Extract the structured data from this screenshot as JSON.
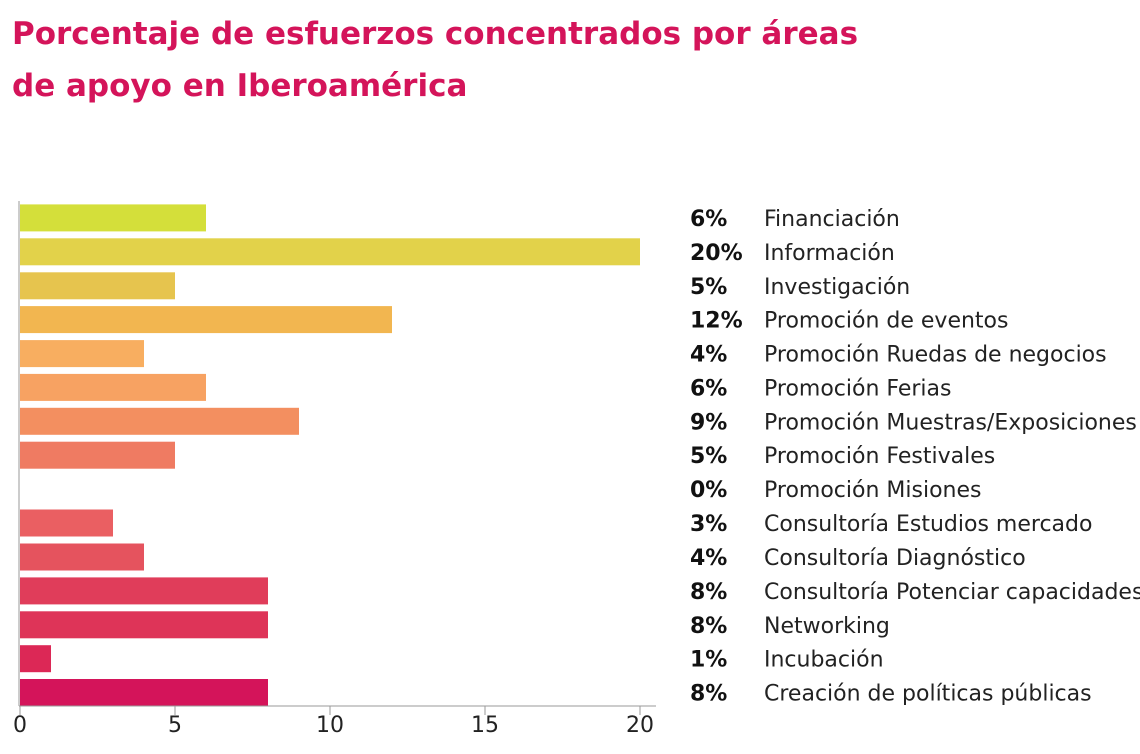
{
  "title": {
    "line1": "Porcentaje de esfuerzos concentrados por áreas",
    "line2": "de apoyo en Iberoamérica"
  },
  "colors": {
    "title": "#d4145a",
    "axis": "#9a9a9a",
    "text": "#222222"
  },
  "chart_data": {
    "type": "bar",
    "orientation": "horizontal",
    "title": "Porcentaje de esfuerzos concentrados por áreas de apoyo en Iberoamérica",
    "xlabel": "",
    "ylabel": "",
    "xlim": [
      0,
      20
    ],
    "xticks": [
      0,
      5,
      10,
      15,
      20
    ],
    "grid": false,
    "legend": "right",
    "categories": [
      "Financiación",
      "Información",
      "Investigación",
      "Promoción de eventos",
      "Promoción Ruedas de negocios",
      "Promoción Ferias",
      "Promoción Muestras/Exposiciones",
      "Promoción Festivales",
      "Promoción Misiones",
      "Consultoría Estudios mercado",
      "Consultoría Diagnóstico",
      "Consultoría Potenciar capacidades",
      "Networking",
      "Incubación",
      "Creación de políticas públicas"
    ],
    "values": [
      6,
      20,
      5,
      12,
      4,
      6,
      9,
      5,
      0,
      3,
      4,
      8,
      8,
      1,
      8
    ],
    "labels": [
      "6%",
      "20%",
      "5%",
      "12%",
      "4%",
      "6%",
      "9%",
      "5%",
      "0%",
      "3%",
      "4%",
      "8%",
      "8%",
      "1%",
      "8%"
    ],
    "colors": [
      "#d4df3a",
      "#e2d24a",
      "#e6c44e",
      "#f2b650",
      "#f8ae60",
      "#f7a262",
      "#f38f60",
      "#ef7b62",
      "#ec6a62",
      "#ea5f62",
      "#e5535e",
      "#e03d5a",
      "#de3458",
      "#dc2856",
      "#d4145a"
    ]
  }
}
